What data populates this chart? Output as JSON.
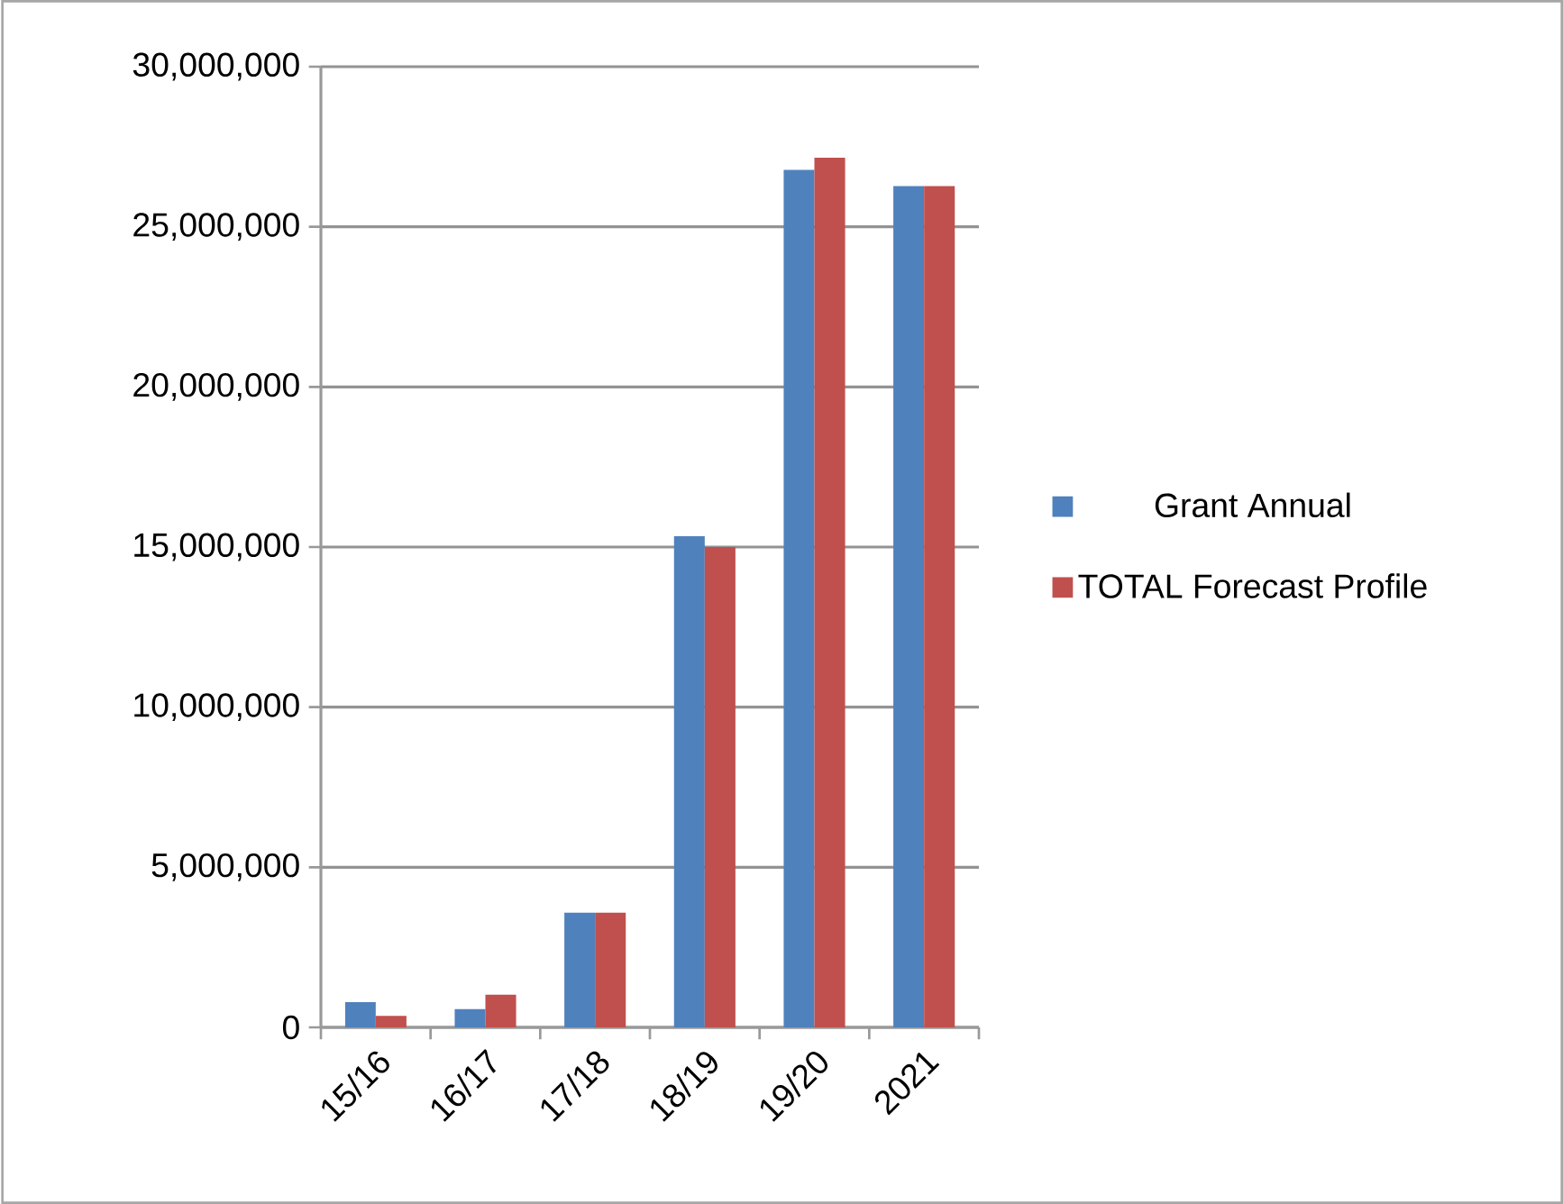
{
  "chart_data": {
    "type": "bar",
    "categories": [
      "15/16",
      "16/17",
      "17/18",
      "18/19",
      "19/20",
      "2021"
    ],
    "series": [
      {
        "name": "Grant Annual",
        "color": "#4f81bd",
        "values": [
          790000,
          570000,
          3580000,
          15340000,
          26780000,
          26270000
        ]
      },
      {
        "name": "TOTAL Forecast Profile",
        "color": "#c0504d",
        "values": [
          360000,
          1020000,
          3580000,
          15000000,
          27160000,
          26270000
        ]
      }
    ],
    "ylim": [
      0,
      30000000
    ],
    "yticks": [
      {
        "value": 0,
        "label": "0"
      },
      {
        "value": 5000000,
        "label": "5,000,000"
      },
      {
        "value": 10000000,
        "label": "10,000,000"
      },
      {
        "value": 15000000,
        "label": "15,000,000"
      },
      {
        "value": 20000000,
        "label": "20,000,000"
      },
      {
        "value": 25000000,
        "label": "25,000,000"
      },
      {
        "value": 30000000,
        "label": "30,000,000"
      }
    ],
    "grid": "y",
    "legend": "right"
  }
}
